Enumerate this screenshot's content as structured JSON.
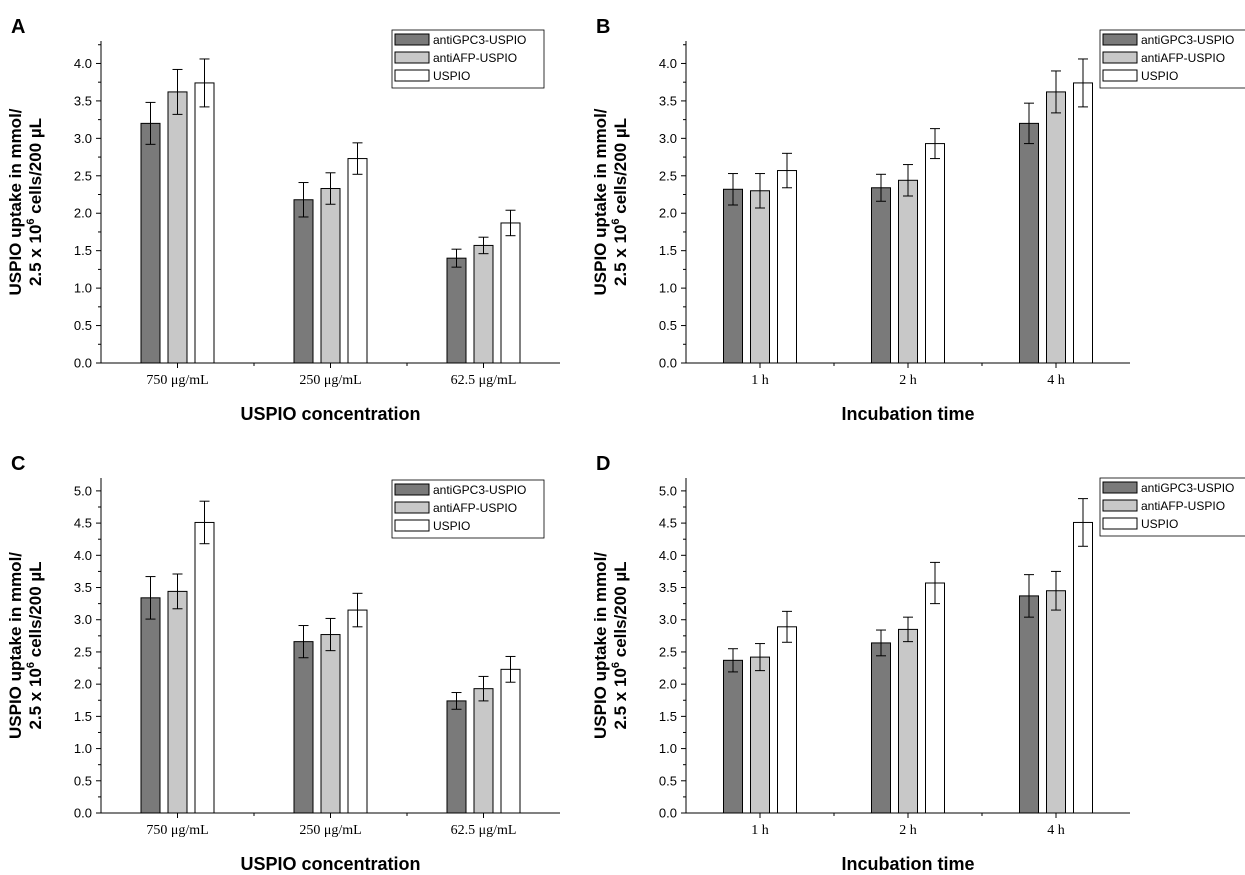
{
  "colors": {
    "antiGPC3-USPIO": "#7a7a7a",
    "antiAFP-USPIO": "#c8c8c8",
    "USPIO": "#ffffff",
    "axis": "#000000"
  },
  "ylabel": {
    "line1": "USPIO uptake in mmol/",
    "line2_prefix": "2.5 x 10",
    "line2_sup": "6",
    "line2_suffix": " cells/200 µL"
  },
  "chart_data": [
    {
      "panel": "A",
      "type": "bar",
      "title": "",
      "xlabel": "USPIO concentration",
      "categories": [
        "750 μg/mL",
        "250 μg/mL",
        "62.5 μg/mL"
      ],
      "ylim": [
        0,
        4.3
      ],
      "yticks": [
        "0.0",
        "0.5",
        "1.0",
        "1.5",
        "2.0",
        "2.5",
        "3.0",
        "3.5",
        "4.0"
      ],
      "grid": false,
      "legend_position": "top-right",
      "series": [
        {
          "name": "antiGPC3-USPIO",
          "values": [
            3.2,
            2.18,
            1.4
          ],
          "errors": [
            0.28,
            0.23,
            0.12
          ]
        },
        {
          "name": "antiAFP-USPIO",
          "values": [
            3.62,
            2.33,
            1.57
          ],
          "errors": [
            0.3,
            0.21,
            0.11
          ]
        },
        {
          "name": "USPIO",
          "values": [
            3.74,
            2.73,
            1.87
          ],
          "errors": [
            0.32,
            0.21,
            0.17
          ]
        }
      ]
    },
    {
      "panel": "B",
      "type": "bar",
      "title": "",
      "xlabel": "Incubation time",
      "categories": [
        "1 h",
        "2 h",
        "4 h"
      ],
      "ylim": [
        0,
        4.3
      ],
      "yticks": [
        "0.0",
        "0.5",
        "1.0",
        "1.5",
        "2.0",
        "2.5",
        "3.0",
        "3.5",
        "4.0"
      ],
      "grid": false,
      "legend_position": "top-right",
      "series": [
        {
          "name": "antiGPC3-USPIO",
          "values": [
            2.32,
            2.34,
            3.2
          ],
          "errors": [
            0.21,
            0.18,
            0.27
          ]
        },
        {
          "name": "antiAFP-USPIO",
          "values": [
            2.3,
            2.44,
            3.62
          ],
          "errors": [
            0.23,
            0.21,
            0.28
          ]
        },
        {
          "name": "USPIO",
          "values": [
            2.57,
            2.93,
            3.74
          ],
          "errors": [
            0.23,
            0.2,
            0.32
          ]
        }
      ]
    },
    {
      "panel": "C",
      "type": "bar",
      "title": "",
      "xlabel": "USPIO concentration",
      "categories": [
        "750 μg/mL",
        "250 μg/mL",
        "62.5 μg/mL"
      ],
      "ylim": [
        0,
        5.2
      ],
      "yticks": [
        "0.0",
        "0.5",
        "1.0",
        "1.5",
        "2.0",
        "2.5",
        "3.0",
        "3.5",
        "4.0",
        "4.5",
        "5.0"
      ],
      "grid": false,
      "legend_position": "top-right",
      "series": [
        {
          "name": "antiGPC3-USPIO",
          "values": [
            3.34,
            2.66,
            1.74
          ],
          "errors": [
            0.33,
            0.25,
            0.13
          ]
        },
        {
          "name": "antiAFP-USPIO",
          "values": [
            3.44,
            2.77,
            1.93
          ],
          "errors": [
            0.27,
            0.25,
            0.19
          ]
        },
        {
          "name": "USPIO",
          "values": [
            4.51,
            3.15,
            2.23
          ],
          "errors": [
            0.33,
            0.26,
            0.2
          ]
        }
      ]
    },
    {
      "panel": "D",
      "type": "bar",
      "title": "",
      "xlabel": "Incubation time",
      "categories": [
        "1 h",
        "2 h",
        "4 h"
      ],
      "ylim": [
        0,
        5.2
      ],
      "yticks": [
        "0.0",
        "0.5",
        "1.0",
        "1.5",
        "2.0",
        "2.5",
        "3.0",
        "3.5",
        "4.0",
        "4.5",
        "5.0"
      ],
      "grid": false,
      "legend_position": "top-right",
      "series": [
        {
          "name": "antiGPC3-USPIO",
          "values": [
            2.37,
            2.64,
            3.37
          ],
          "errors": [
            0.18,
            0.2,
            0.33
          ]
        },
        {
          "name": "antiAFP-USPIO",
          "values": [
            2.42,
            2.85,
            3.45
          ],
          "errors": [
            0.21,
            0.19,
            0.3
          ]
        },
        {
          "name": "USPIO",
          "values": [
            2.89,
            3.57,
            4.51
          ],
          "errors": [
            0.24,
            0.32,
            0.37
          ]
        }
      ]
    }
  ]
}
